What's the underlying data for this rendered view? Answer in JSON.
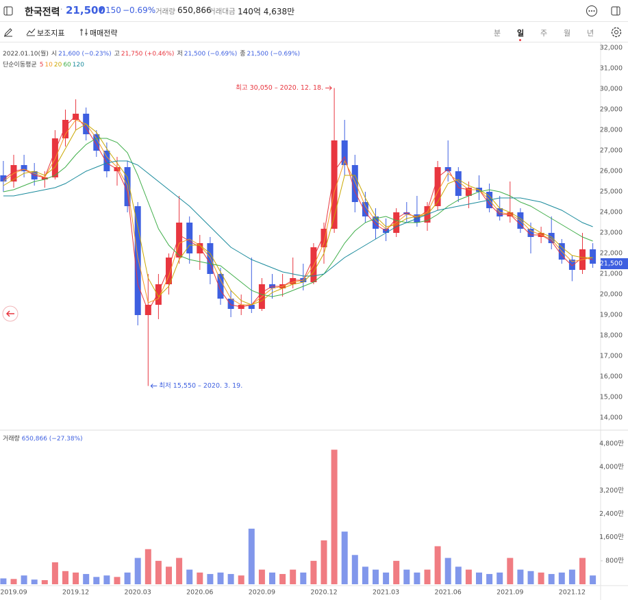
{
  "header": {
    "title": "한국전력",
    "price": "21,500",
    "change_sign": "▼",
    "change": "150",
    "change_pct": "−0.69%",
    "volume_label": "거래량",
    "volume": "650,866",
    "amount_label": "거래대금",
    "amount": "140억 4,638만"
  },
  "toolbar": {
    "indicators": "보조지표",
    "strategy": "매매전략",
    "periods": [
      "분",
      "일",
      "주",
      "월",
      "년"
    ],
    "active_period": 1
  },
  "chart_data": {
    "type": "candlestick",
    "info": {
      "date": "2022.01.10(월)",
      "items": [
        {
          "label": "시",
          "value": "21,600 (−0.23%)",
          "color": "#3d5fe0"
        },
        {
          "label": "고",
          "value": "21,750 (+0.46%)",
          "color": "#e8363f"
        },
        {
          "label": "저",
          "value": "21,500 (−0.69%)",
          "color": "#3d5fe0"
        },
        {
          "label": "종",
          "value": "21,500 (−0.69%)",
          "color": "#3d5fe0"
        }
      ]
    },
    "ma_title": "단순이동평균",
    "categories": [
      null,
      "2019.09",
      null,
      null,
      null,
      null,
      null,
      "2019.12",
      null,
      null,
      null,
      null,
      null,
      "2020.03",
      null,
      null,
      null,
      null,
      null,
      "2020.06",
      null,
      null,
      null,
      null,
      null,
      "2020.09",
      null,
      null,
      null,
      null,
      null,
      "2020.12",
      null,
      null,
      null,
      null,
      null,
      "2021.03",
      null,
      null,
      null,
      null,
      null,
      "2021.06",
      null,
      null,
      null,
      null,
      null,
      "2021.09",
      null,
      null,
      null,
      null,
      null,
      "2021.12",
      null,
      null
    ],
    "open": [
      25800,
      25500,
      26300,
      26000,
      25600,
      25700,
      27600,
      28500,
      28800,
      27800,
      27000,
      26000,
      26200,
      24300,
      19000,
      19500,
      20500,
      21800,
      23500,
      22000,
      22500,
      21000,
      19800,
      19300,
      19500,
      19300,
      20500,
      20300,
      20500,
      20800,
      20600,
      22300,
      23200,
      27500,
      26300,
      24500,
      23800,
      23200,
      23000,
      24000,
      23900,
      23500,
      24300,
      26200,
      26000,
      24800,
      25200,
      25000,
      24200,
      23800,
      24000,
      23200,
      22800,
      23000,
      22500,
      21700,
      21200,
      22200
    ],
    "high": [
      26500,
      26800,
      26800,
      26400,
      26000,
      28000,
      29000,
      29500,
      29100,
      28000,
      27400,
      26700,
      26500,
      24500,
      21000,
      21000,
      22000,
      24800,
      23800,
      22900,
      22800,
      21300,
      20200,
      20000,
      21800,
      20800,
      21000,
      21000,
      21800,
      21500,
      22500,
      23500,
      30050,
      28500,
      26800,
      25000,
      24200,
      23700,
      24200,
      24500,
      24800,
      24500,
      26500,
      27500,
      26200,
      25500,
      25800,
      25400,
      24800,
      25500,
      24200,
      23500,
      23300,
      23800,
      22700,
      21900,
      23000,
      22500
    ],
    "low": [
      25000,
      25200,
      25700,
      25300,
      25200,
      25600,
      27200,
      28000,
      27500,
      26700,
      25700,
      25300,
      24000,
      18500,
      15550,
      18800,
      20000,
      21500,
      21500,
      21200,
      20500,
      19500,
      18900,
      19000,
      19100,
      19200,
      19800,
      19900,
      20300,
      20200,
      20500,
      21500,
      23000,
      25800,
      24000,
      23500,
      22700,
      22600,
      22800,
      23500,
      23300,
      23100,
      24100,
      25500,
      24500,
      24200,
      24600,
      24000,
      23600,
      23500,
      23000,
      22000,
      22500,
      22200,
      21500,
      20650,
      21000,
      21300
    ],
    "close": [
      25500,
      26300,
      26000,
      25600,
      25700,
      27600,
      28500,
      28800,
      27800,
      27000,
      26000,
      26200,
      24300,
      19000,
      19500,
      20500,
      21800,
      23500,
      22000,
      22500,
      21000,
      19800,
      19300,
      19500,
      19300,
      20500,
      20300,
      20500,
      20800,
      20600,
      22300,
      23200,
      27500,
      26300,
      24500,
      23800,
      23200,
      23000,
      24000,
      23900,
      23500,
      24300,
      26200,
      26000,
      24800,
      25200,
      25000,
      24200,
      23800,
      24000,
      23200,
      22800,
      23000,
      22500,
      21700,
      21200,
      22200,
      21500
    ],
    "up_color": "#e8363f",
    "down_color": "#3d5fe0",
    "series": [
      {
        "name": "5",
        "color": "#e8363f",
        "values": [
          25600,
          26000,
          26100,
          25800,
          25700,
          27000,
          28200,
          28700,
          28100,
          27300,
          26400,
          26100,
          25000,
          20500,
          19200,
          20100,
          21300,
          22900,
          22600,
          22300,
          21500,
          20200,
          19500,
          19400,
          19500,
          20100,
          20400,
          20400,
          20700,
          20700,
          21800,
          22900,
          26000,
          26700,
          25000,
          24000,
          23400,
          23100,
          23700,
          24000,
          23700,
          24100,
          25700,
          26100,
          25200,
          25100,
          25100,
          24400,
          23900,
          23900,
          23400,
          22900,
          22900,
          22600,
          21900,
          21400,
          21800,
          21700
        ]
      },
      {
        "name": "10",
        "color": "#f59a23",
        "values": [
          25500,
          25900,
          26100,
          25900,
          25700,
          26600,
          27800,
          28500,
          28300,
          27600,
          26700,
          26200,
          25300,
          21800,
          19600,
          19800,
          20900,
          22500,
          22700,
          22400,
          21800,
          20700,
          19800,
          19500,
          19500,
          19900,
          20300,
          20400,
          20600,
          20700,
          21400,
          22500,
          25000,
          26500,
          25500,
          24300,
          23600,
          23200,
          23500,
          23900,
          23800,
          24000,
          25000,
          25900,
          25500,
          25100,
          25100,
          24600,
          24000,
          23900,
          23600,
          23100,
          22900,
          22700,
          22100,
          21600,
          21700,
          21800
        ]
      },
      {
        "name": "20",
        "color": "#c9a800",
        "values": [
          25300,
          25600,
          25900,
          26000,
          25800,
          26200,
          27100,
          28000,
          28300,
          27900,
          27100,
          26400,
          25700,
          23300,
          20800,
          19900,
          20400,
          21700,
          22400,
          22400,
          22000,
          21100,
          20200,
          19700,
          19500,
          19700,
          20100,
          20300,
          20500,
          20600,
          21100,
          22000,
          23800,
          25800,
          25800,
          24700,
          23800,
          23300,
          23400,
          23700,
          23800,
          23900,
          24500,
          25400,
          25600,
          25300,
          25100,
          24800,
          24200,
          24000,
          23700,
          23300,
          23000,
          22800,
          22300,
          21900,
          21800,
          21800
        ]
      },
      {
        "name": "60",
        "color": "#3fae49",
        "values": [
          25000,
          25100,
          25300,
          25500,
          25600,
          25800,
          26200,
          26800,
          27300,
          27600,
          27600,
          27400,
          26900,
          25800,
          24500,
          23200,
          22400,
          21900,
          21700,
          21600,
          21500,
          21400,
          21000,
          20600,
          20200,
          20000,
          19900,
          20000,
          20200,
          20400,
          20600,
          21000,
          21700,
          22500,
          23100,
          23500,
          23700,
          23800,
          23600,
          23500,
          23500,
          23600,
          23900,
          24300,
          24600,
          24800,
          25000,
          25100,
          25000,
          24800,
          24500,
          24300,
          24000,
          23700,
          23400,
          23100,
          22800,
          22600
        ]
      },
      {
        "name": "120",
        "color": "#17899b",
        "values": [
          24800,
          24800,
          24900,
          25000,
          25100,
          25200,
          25400,
          25700,
          26000,
          26200,
          26400,
          26500,
          26500,
          26300,
          25900,
          25500,
          25100,
          24700,
          24300,
          23800,
          23300,
          22800,
          22300,
          22000,
          21700,
          21500,
          21300,
          21100,
          21000,
          20900,
          20900,
          21000,
          21400,
          21800,
          22100,
          22400,
          22700,
          23000,
          23300,
          23500,
          23700,
          23900,
          24100,
          24200,
          24300,
          24400,
          24500,
          24600,
          24700,
          24700,
          24700,
          24600,
          24500,
          24300,
          24100,
          23800,
          23500,
          23300
        ]
      }
    ],
    "ylim": [
      14000,
      32000
    ],
    "yticks": [
      {
        "value": 14000,
        "label": "14,000"
      },
      {
        "value": 15000,
        "label": "15,000"
      },
      {
        "value": 16000,
        "label": "16,000"
      },
      {
        "value": 17000,
        "label": "17,000"
      },
      {
        "value": 18000,
        "label": "18,000"
      },
      {
        "value": 19000,
        "label": "19,000"
      },
      {
        "value": 20000,
        "label": "20,000"
      },
      {
        "value": 21000,
        "label": "21,000"
      },
      {
        "value": 22000,
        "label": "22,000"
      },
      {
        "value": 23000,
        "label": "23,000"
      },
      {
        "value": 24000,
        "label": "24,000"
      },
      {
        "value": 25000,
        "label": "25,000"
      },
      {
        "value": 26000,
        "label": "26,000"
      },
      {
        "value": 27000,
        "label": "27,000"
      },
      {
        "value": 28000,
        "label": "28,000"
      },
      {
        "value": 29000,
        "label": "29,000"
      },
      {
        "value": 30000,
        "label": "30,000"
      },
      {
        "value": 31000,
        "label": "31,000"
      },
      {
        "value": 32000,
        "label": "32,000"
      }
    ],
    "last_price_label": "21,500",
    "annotations": [
      {
        "text": "최고 30,050 – 2020. 12. 18."
      },
      {
        "text": "최저 15,550 – 2020. 3. 19."
      }
    ],
    "volume": {
      "title": "거래량",
      "value_text": "650,866 (−27.38%)",
      "values": [
        2000000,
        1800000,
        3000000,
        1600000,
        1400000,
        7500000,
        4500000,
        4000000,
        3500000,
        2500000,
        3000000,
        2500000,
        4000000,
        9000000,
        12000000,
        8000000,
        6000000,
        9000000,
        5000000,
        4000000,
        3500000,
        4000000,
        3500000,
        3000000,
        19000000,
        5000000,
        4000000,
        3500000,
        5000000,
        4000000,
        8000000,
        15000000,
        46000000,
        18000000,
        10000000,
        6000000,
        5000000,
        4000000,
        8000000,
        5000000,
        4000000,
        5000000,
        13000000,
        9000000,
        6000000,
        5000000,
        4000000,
        3500000,
        4000000,
        9000000,
        5000000,
        4500000,
        4000000,
        3500000,
        4000000,
        5000000,
        9000000,
        3000000
      ],
      "ylim": [
        0,
        48000000
      ],
      "yticks": [
        {
          "value": 8000000,
          "label": "800만"
        },
        {
          "value": 16000000,
          "label": "1,600만"
        },
        {
          "value": 24000000,
          "label": "2,400만"
        },
        {
          "value": 32000000,
          "label": "3,200만"
        },
        {
          "value": 40000000,
          "label": "4,000만"
        },
        {
          "value": 48000000,
          "label": "4,800만"
        }
      ]
    }
  }
}
